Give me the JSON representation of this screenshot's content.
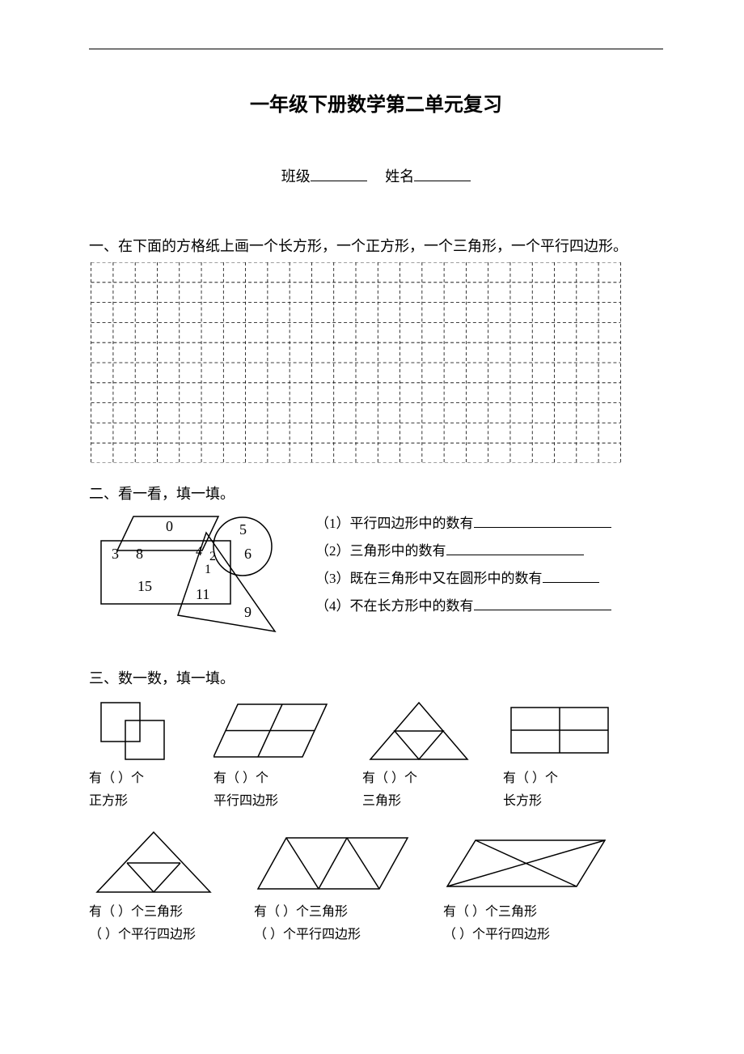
{
  "title": "一年级下册数学第二单元复习",
  "header": {
    "class_label": "班级",
    "name_label": "姓名"
  },
  "section1": {
    "heading": "一、在下面的方格纸上画一个长方形，一个正方形，一个三角形，一个平行四边形。",
    "grid": {
      "cols": 24,
      "rows": 10,
      "stroke": "#000000"
    }
  },
  "section2": {
    "heading": "二、看一看，填一填。",
    "diagram_numbers": [
      "0",
      "3",
      "8",
      "15",
      "1",
      "2",
      "4",
      "11",
      "5",
      "6",
      "9"
    ],
    "items": [
      "（1）平行四边形中的数有",
      "（2）三角形中的数有",
      "（3）既在三角形中又在圆形中的数有",
      "（4）不在长方形中的数有"
    ]
  },
  "section3": {
    "heading": "三、数一数，填一填。",
    "row1": [
      {
        "caption1": "有（  ）个",
        "caption2": "正方形"
      },
      {
        "caption1": "有（  ）个",
        "caption2": "平行四边形"
      },
      {
        "caption1": "有（  ）个",
        "caption2": "三角形"
      },
      {
        "caption1": "有（  ）个",
        "caption2": "长方形"
      }
    ],
    "row2": [
      {
        "caption1": "有（   ）个三角形",
        "caption2": "（   ）个平行四边形"
      },
      {
        "caption1": "有（   ）个三角形",
        "caption2": "（   ）个平行四边形"
      },
      {
        "caption1": "有（   ）个三角形",
        "caption2": "（   ）个平行四边形"
      }
    ]
  },
  "colors": {
    "stroke": "#000000",
    "bg": "#ffffff"
  }
}
